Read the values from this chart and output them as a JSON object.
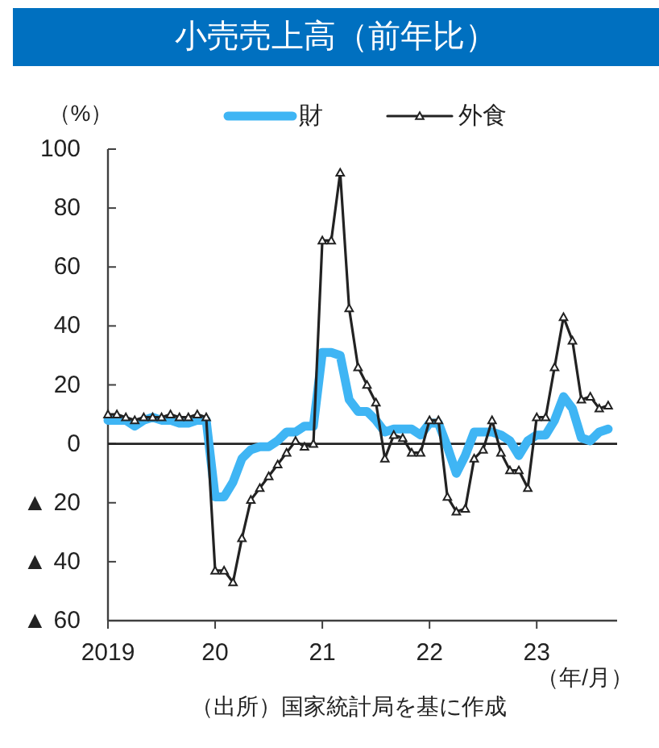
{
  "chart_data": {
    "type": "line",
    "title": "小売売上高（前年比）",
    "ylabel": "（%）",
    "xlabel": "（年/月）",
    "annotations": [
      "（出所）国家統計局を基に作成"
    ],
    "x": [
      "2019-01",
      "2019-02",
      "2019-03",
      "2019-04",
      "2019-05",
      "2019-06",
      "2019-07",
      "2019-08",
      "2019-09",
      "2019-10",
      "2019-11",
      "2019-12",
      "2020-01",
      "2020-02",
      "2020-03",
      "2020-04",
      "2020-05",
      "2020-06",
      "2020-07",
      "2020-08",
      "2020-09",
      "2020-10",
      "2020-11",
      "2020-12",
      "2021-01",
      "2021-02",
      "2021-03",
      "2021-04",
      "2021-05",
      "2021-06",
      "2021-07",
      "2021-08",
      "2021-09",
      "2021-10",
      "2021-11",
      "2021-12",
      "2022-01",
      "2022-02",
      "2022-03",
      "2022-04",
      "2022-05",
      "2022-06",
      "2022-07",
      "2022-08",
      "2022-09",
      "2022-10",
      "2022-11",
      "2022-12",
      "2023-01",
      "2023-02",
      "2023-03",
      "2023-04",
      "2023-05",
      "2023-06",
      "2023-07",
      "2023-08",
      "2023-09"
    ],
    "series": [
      {
        "name": "財",
        "color": "#3fb5f4",
        "values": [
          8,
          8,
          8,
          6,
          8,
          9,
          8,
          8,
          7,
          7,
          8,
          8,
          -18,
          -18,
          -13,
          -5,
          -2,
          -1,
          -1,
          1,
          4,
          4,
          6,
          6,
          31,
          31,
          30,
          15,
          11,
          11,
          8,
          4,
          5,
          5,
          5,
          3,
          7,
          7,
          -1,
          -10,
          -4,
          4,
          4,
          4,
          3,
          1,
          -4,
          1,
          3,
          3,
          8,
          16,
          12,
          2,
          1,
          4,
          5
        ]
      },
      {
        "name": "外食",
        "color": "#222222",
        "marker": "triangle",
        "values": [
          10,
          10,
          9,
          8,
          9,
          9,
          9,
          10,
          9,
          9,
          10,
          9,
          -43,
          -43,
          -47,
          -32,
          -19,
          -15,
          -11,
          -7,
          -3,
          1,
          -1,
          0,
          69,
          69,
          92,
          46,
          26,
          20,
          14,
          -5,
          3,
          2,
          -3,
          -3,
          8,
          8,
          -18,
          -23,
          -22,
          -5,
          -2,
          8,
          -3,
          -9,
          -9,
          -15,
          9,
          9,
          26,
          43,
          35,
          15,
          16,
          12,
          13
        ]
      }
    ],
    "xlim": [
      "2019-01",
      "2023-10"
    ],
    "xticks": [
      {
        "value": "2019-01",
        "label": "2019"
      },
      {
        "value": "2020-01",
        "label": "20"
      },
      {
        "value": "2021-01",
        "label": "21"
      },
      {
        "value": "2022-01",
        "label": "22"
      },
      {
        "value": "2023-01",
        "label": "23"
      }
    ],
    "ylim": [
      -60,
      100
    ],
    "yticks": [
      {
        "value": -60,
        "label": "▲ 60"
      },
      {
        "value": -40,
        "label": "▲ 40"
      },
      {
        "value": -20,
        "label": "▲ 20"
      },
      0,
      20,
      40,
      60,
      80,
      100
    ],
    "ref_lines": [
      {
        "axis": "y",
        "value": 0,
        "color": "#222222"
      }
    ],
    "legend": "top"
  }
}
